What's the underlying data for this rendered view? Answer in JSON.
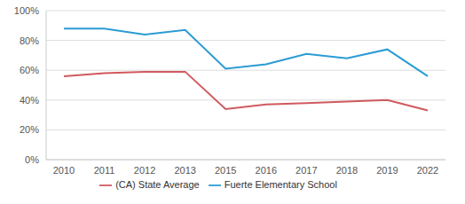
{
  "chart_data": {
    "type": "line",
    "categories": [
      "2010",
      "2011",
      "2012",
      "2013",
      "2015",
      "2016",
      "2017",
      "2018",
      "2019",
      "2022"
    ],
    "series": [
      {
        "name": "Fuerte Elementary School",
        "color": "#2b9bd4",
        "values": [
          88,
          88,
          84,
          87,
          61,
          64,
          71,
          68,
          74,
          56
        ]
      },
      {
        "name": "(CA) State Average",
        "color": "#d0595e",
        "values": [
          56,
          58,
          59,
          59,
          34,
          37,
          38,
          39,
          40,
          33
        ]
      }
    ],
    "ylim": [
      0,
      100
    ],
    "yticks": [
      {
        "value": 0,
        "label": "0%"
      },
      {
        "value": 20,
        "label": "20%"
      },
      {
        "value": 40,
        "label": "40%"
      },
      {
        "value": 60,
        "label": "60%"
      },
      {
        "value": 80,
        "label": "80%"
      },
      {
        "value": 100,
        "label": "100%"
      }
    ],
    "grid": true,
    "legend": "bottom"
  }
}
